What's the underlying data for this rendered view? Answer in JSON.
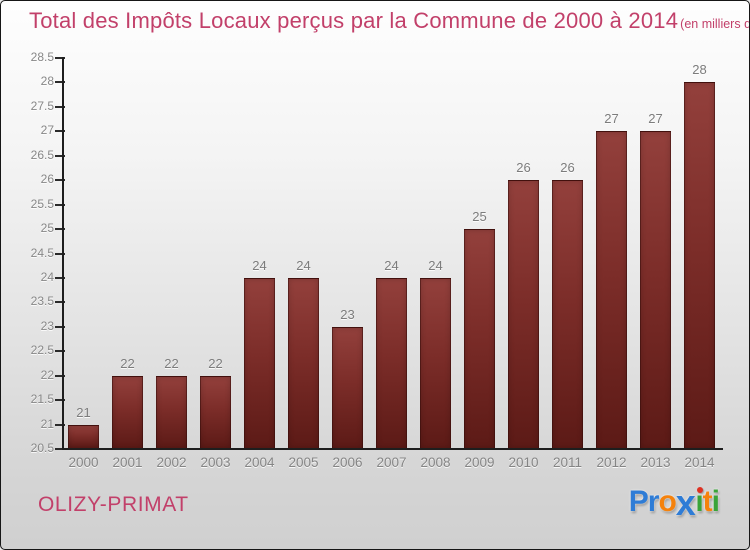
{
  "title": "Total des Impôts Locaux perçus par la Commune de 2000 à 2014",
  "title_unit": "(en milliers d'€)",
  "commune": "OLIZY-PRIMAT",
  "logo": {
    "name": "Proxiti",
    "letters": [
      {
        "ch": "P",
        "color": "#2e7cd6"
      },
      {
        "ch": "r",
        "color": "#2e7cd6"
      },
      {
        "ch": "o",
        "color": "#f5820c"
      },
      {
        "ch": "x",
        "color": "#2e7cd6",
        "stylized": true
      },
      {
        "ch": "i",
        "color": "#3aa439",
        "dot": "#df3122"
      },
      {
        "ch": "t",
        "color": "#f5820c"
      },
      {
        "ch": "i",
        "color": "#3aa439"
      }
    ]
  },
  "chart_data": {
    "type": "bar",
    "title": "Total des Impôts Locaux perçus par la Commune de 2000 à 2014",
    "subtitle_unit": "(en milliers d'€)",
    "categories": [
      "2000",
      "2001",
      "2002",
      "2003",
      "2004",
      "2005",
      "2006",
      "2007",
      "2008",
      "2009",
      "2010",
      "2011",
      "2012",
      "2013",
      "2014"
    ],
    "values": [
      21,
      22,
      22,
      22,
      24,
      24,
      23,
      24,
      24,
      25,
      26,
      26,
      27,
      27,
      28
    ],
    "xlabel": "",
    "ylabel": "",
    "ylim": [
      20.5,
      28.5
    ],
    "ytick_step": 0.5,
    "grid": false,
    "legend": false,
    "bar_color_top": "#93403c",
    "bar_color_bottom": "#5c1a16",
    "axis_color": "#1e1e1e",
    "tick_label_color": "#878787",
    "value_label_color": "#7c7c7c"
  },
  "colors": {
    "title": "#c2406a",
    "background_top": "#fdfdfd",
    "background_bottom": "#d0d0d0"
  }
}
